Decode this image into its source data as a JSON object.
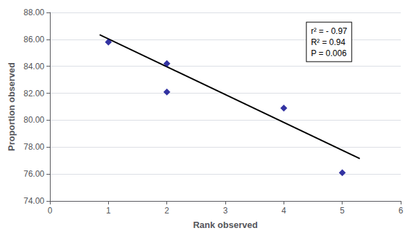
{
  "chart_data": {
    "type": "scatter",
    "xlabel": "Rank observed",
    "ylabel": "Proportion observed",
    "annotations": [
      "r² = - 0.97",
      "R² = 0.94",
      "P = 0.006"
    ],
    "series": [
      {
        "type": "line",
        "color": "#000000",
        "x": [
          0.85,
          5.3
        ],
        "values": [
          86.35,
          77.15
        ]
      },
      {
        "type": "scatter",
        "marker": "diamond",
        "color": "#00008B",
        "x": [
          1,
          2,
          2,
          4,
          5
        ],
        "values": [
          85.8,
          84.2,
          82.1,
          80.9,
          76.1
        ]
      }
    ],
    "xlim": [
      0,
      6
    ],
    "ylim": [
      74.0,
      88.0
    ],
    "xticks": [
      0,
      1,
      2,
      3,
      4,
      5,
      6
    ],
    "yticks": [
      {
        "value": 74.0,
        "label": "74.00"
      },
      {
        "value": 76.0,
        "label": "76.00"
      },
      {
        "value": 78.0,
        "label": "78.00"
      },
      {
        "value": 80.0,
        "label": "80.00"
      },
      {
        "value": 82.0,
        "label": "82.00"
      },
      {
        "value": 84.0,
        "label": "84.00"
      },
      {
        "value": 86.0,
        "label": "86.00"
      },
      {
        "value": 88.0,
        "label": "88.00"
      }
    ],
    "grid": "y"
  }
}
